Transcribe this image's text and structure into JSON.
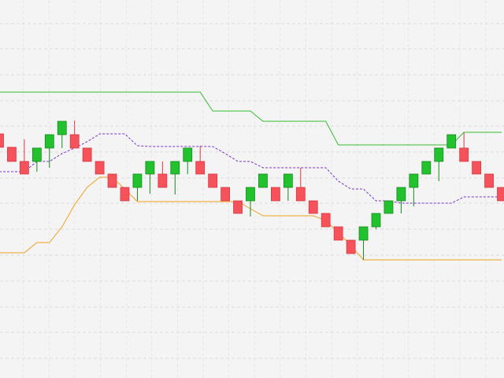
{
  "chart_data": {
    "type": "candlestick",
    "categories": [
      null,
      null,
      null,
      null,
      null,
      null,
      null,
      null,
      null,
      null,
      null,
      null,
      null,
      null,
      null,
      null,
      null,
      null,
      null,
      null,
      null,
      null,
      null,
      null,
      null,
      null,
      null,
      null,
      null,
      null,
      null,
      null,
      null,
      null,
      null,
      null,
      null,
      null,
      null,
      null,
      null
    ],
    "open": [
      310,
      293,
      275,
      275,
      292,
      309,
      309,
      292,
      275,
      259,
      242,
      242,
      259,
      259,
      259,
      275,
      275,
      259,
      242,
      225,
      225,
      242,
      242,
      242,
      242,
      225,
      209,
      192,
      175,
      175,
      192,
      209,
      225,
      242,
      259,
      275,
      292,
      292,
      275,
      259,
      242
    ],
    "high": [
      310,
      293,
      303,
      292,
      309,
      326,
      327,
      292,
      275,
      259,
      242,
      259,
      275,
      275,
      275,
      292,
      295,
      259,
      242,
      225,
      242,
      259,
      242,
      259,
      267,
      225,
      209,
      192,
      175,
      192,
      209,
      225,
      242,
      259,
      275,
      292,
      309,
      312,
      275,
      259,
      242
    ],
    "low": [
      293,
      275,
      259,
      262,
      267,
      292,
      292,
      275,
      259,
      242,
      225,
      225,
      234,
      242,
      233,
      259,
      259,
      242,
      225,
      209,
      205,
      242,
      225,
      225,
      225,
      209,
      192,
      175,
      158,
      150,
      189,
      209,
      209,
      218,
      259,
      250,
      292,
      275,
      259,
      242,
      225
    ],
    "close": [
      293,
      275,
      259,
      292,
      309,
      326,
      292,
      275,
      259,
      242,
      225,
      259,
      275,
      242,
      275,
      292,
      259,
      242,
      225,
      209,
      242,
      259,
      225,
      259,
      225,
      209,
      192,
      175,
      158,
      192,
      209,
      225,
      242,
      259,
      275,
      292,
      309,
      275,
      259,
      242,
      225
    ],
    "up_color": "#22c22e",
    "down_color": "#f5525b",
    "series": [
      {
        "color": "#33bb33",
        "dashed": false,
        "values": [
          363,
          363,
          363,
          363,
          363,
          363,
          363,
          363,
          363,
          363,
          363,
          363,
          363,
          363,
          363,
          363,
          363,
          339,
          339,
          339,
          339,
          326,
          326,
          326,
          326,
          326,
          326,
          296,
          296,
          296,
          296,
          296,
          296,
          296,
          296,
          296,
          296,
          312,
          312,
          312,
          312
        ]
      },
      {
        "color": "#7733cc",
        "dashed": true,
        "values": [
          262,
          262,
          262,
          275,
          275,
          285,
          292,
          300,
          310,
          310,
          310,
          295,
          294,
          294,
          294,
          294,
          294,
          294,
          285,
          275,
          275,
          267,
          267,
          267,
          267,
          267,
          267,
          250,
          240,
          240,
          225,
          225,
          222,
          222,
          222,
          222,
          222,
          230,
          230,
          230,
          230
        ]
      },
      {
        "color": "#f0a020",
        "dashed": false,
        "values": [
          159,
          159,
          159,
          172,
          172,
          192,
          220,
          242,
          255,
          255,
          240,
          224,
          224,
          224,
          224,
          224,
          224,
          224,
          224,
          224,
          215,
          206,
          206,
          206,
          206,
          206,
          200,
          185,
          168,
          150,
          150,
          150,
          150,
          150,
          150,
          150,
          150,
          150,
          150,
          150,
          150
        ]
      }
    ],
    "ylim": [
      0,
      480
    ],
    "yticks": [
      25,
      58,
      90,
      123,
      156,
      189,
      222,
      254,
      287,
      320,
      352,
      385,
      418,
      450
    ],
    "grid": true
  }
}
